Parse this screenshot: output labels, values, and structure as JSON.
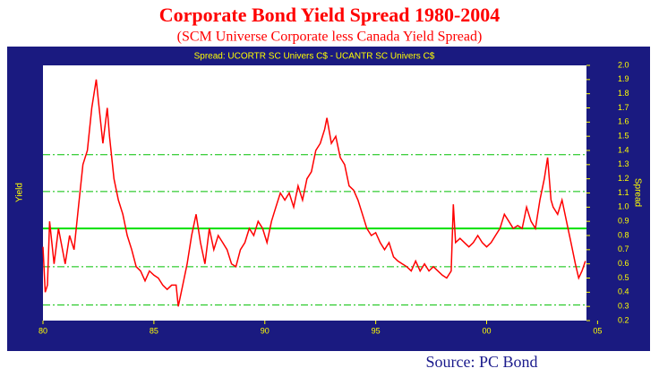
{
  "chart_data": {
    "type": "line",
    "title": "Corporate Bond Yield Spread 1980-2004",
    "subtitle": "(SCM Universe Corporate less Canada Yield Spread)",
    "plot_title": "Spread: UCORTR SC Univers C$  -  UCANTR SC Univers C$",
    "y_label_left": "Yield",
    "y_label_right": "Spread",
    "source": "Source: PC Bond",
    "x": [
      1980.0,
      1980.1,
      1980.2,
      1980.3,
      1980.5,
      1980.7,
      1981.0,
      1981.2,
      1981.4,
      1981.6,
      1981.8,
      1982.0,
      1982.2,
      1982.4,
      1982.5,
      1982.7,
      1982.9,
      1983.0,
      1983.2,
      1983.4,
      1983.6,
      1983.8,
      1984.0,
      1984.2,
      1984.4,
      1984.6,
      1984.8,
      1985.0,
      1985.2,
      1985.4,
      1985.6,
      1985.8,
      1986.0,
      1986.1,
      1986.3,
      1986.5,
      1986.7,
      1986.9,
      1987.1,
      1987.3,
      1987.5,
      1987.7,
      1987.9,
      1988.1,
      1988.3,
      1988.5,
      1988.7,
      1988.9,
      1989.1,
      1989.3,
      1989.5,
      1989.7,
      1989.9,
      1990.1,
      1990.3,
      1990.5,
      1990.7,
      1990.9,
      1991.1,
      1991.3,
      1991.5,
      1991.7,
      1991.9,
      1992.1,
      1992.3,
      1992.5,
      1992.7,
      1992.8,
      1993.0,
      1993.2,
      1993.4,
      1993.6,
      1993.8,
      1994.0,
      1994.2,
      1994.4,
      1994.6,
      1994.8,
      1995.0,
      1995.2,
      1995.4,
      1995.6,
      1995.8,
      1996.0,
      1996.2,
      1996.4,
      1996.6,
      1996.8,
      1997.0,
      1997.2,
      1997.4,
      1997.6,
      1997.8,
      1998.0,
      1998.2,
      1998.4,
      1998.5,
      1998.6,
      1998.8,
      1999.0,
      1999.2,
      1999.4,
      1999.6,
      1999.8,
      2000.0,
      2000.2,
      2000.4,
      2000.6,
      2000.8,
      2001.0,
      2001.2,
      2001.4,
      2001.6,
      2001.8,
      2002.0,
      2002.2,
      2002.4,
      2002.6,
      2002.75,
      2002.9,
      2003.0,
      2003.2,
      2003.4,
      2003.6,
      2003.8,
      2004.0,
      2004.15,
      2004.3,
      2004.45
    ],
    "series": [
      {
        "name": "Spread",
        "color": "#ff0000",
        "values": [
          0.72,
          0.4,
          0.45,
          0.9,
          0.6,
          0.85,
          0.6,
          0.8,
          0.7,
          1.0,
          1.3,
          1.4,
          1.7,
          1.9,
          1.75,
          1.45,
          1.7,
          1.5,
          1.2,
          1.05,
          0.95,
          0.8,
          0.7,
          0.58,
          0.55,
          0.48,
          0.55,
          0.52,
          0.5,
          0.45,
          0.42,
          0.45,
          0.45,
          0.3,
          0.45,
          0.6,
          0.8,
          0.95,
          0.75,
          0.6,
          0.85,
          0.7,
          0.8,
          0.75,
          0.7,
          0.6,
          0.58,
          0.7,
          0.75,
          0.85,
          0.8,
          0.9,
          0.85,
          0.75,
          0.9,
          1.0,
          1.1,
          1.05,
          1.1,
          1.0,
          1.15,
          1.05,
          1.2,
          1.25,
          1.4,
          1.45,
          1.55,
          1.63,
          1.45,
          1.5,
          1.35,
          1.3,
          1.15,
          1.12,
          1.05,
          0.95,
          0.85,
          0.8,
          0.82,
          0.75,
          0.7,
          0.75,
          0.65,
          0.62,
          0.6,
          0.58,
          0.55,
          0.62,
          0.55,
          0.6,
          0.55,
          0.58,
          0.55,
          0.52,
          0.5,
          0.55,
          1.02,
          0.75,
          0.78,
          0.75,
          0.72,
          0.75,
          0.8,
          0.75,
          0.72,
          0.75,
          0.8,
          0.85,
          0.95,
          0.9,
          0.85,
          0.87,
          0.85,
          1.0,
          0.9,
          0.85,
          1.05,
          1.2,
          1.35,
          1.05,
          1.0,
          0.95,
          1.05,
          0.9,
          0.75,
          0.6,
          0.5,
          0.55,
          0.62
        ]
      }
    ],
    "reference_lines": [
      {
        "value": 0.85,
        "style": "solid",
        "color": "#00e000"
      },
      {
        "value": 1.37,
        "style": "dashdot",
        "color": "#00c000"
      },
      {
        "value": 1.11,
        "style": "dashdot",
        "color": "#00c000"
      },
      {
        "value": 0.58,
        "style": "dashdot",
        "color": "#00c000"
      },
      {
        "value": 0.31,
        "style": "dashdot",
        "color": "#00c000"
      }
    ],
    "xlim": [
      1980,
      2004.5
    ],
    "xticks": [
      {
        "value": 1980,
        "label": "80"
      },
      {
        "value": 1985,
        "label": "85"
      },
      {
        "value": 1990,
        "label": "90"
      },
      {
        "value": 1995,
        "label": "95"
      },
      {
        "value": 2000,
        "label": "00"
      },
      {
        "value": 2005,
        "label": "05"
      }
    ],
    "ylim": [
      0.2,
      2.0
    ],
    "yticks": [
      0.2,
      0.3,
      0.4,
      0.5,
      0.6,
      0.7,
      0.8,
      0.9,
      {
        "value": 1,
        "label": "1.0"
      },
      1.1,
      1.2,
      1.3,
      1.4,
      1.5,
      1.6,
      1.7,
      1.8,
      1.9,
      {
        "value": 2,
        "label": "2.0"
      }
    ]
  }
}
